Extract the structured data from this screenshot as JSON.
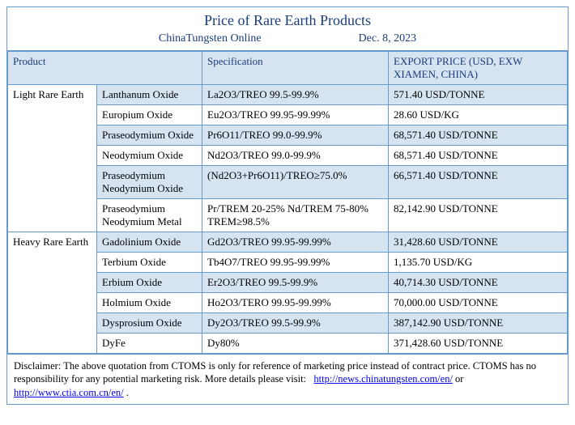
{
  "header": {
    "title": "Price of Rare Earth Products",
    "source": "ChinaTungsten Online",
    "date": "Dec. 8, 2023"
  },
  "columns": {
    "product": "Product",
    "spec": "Specification",
    "price": "EXPORT PRICE\n(USD, EXW XIAMEN, CHINA)"
  },
  "categories": [
    {
      "name": "Light Rare Earth",
      "rows": [
        {
          "product": "Lanthanum Oxide",
          "spec": "La2O3/TREO 99.5-99.9%",
          "price": "571.40 USD/TONNE"
        },
        {
          "product": "Europium Oxide",
          "spec": "Eu2O3/TREO 99.95-99.99%",
          "price": "28.60 USD/KG"
        },
        {
          "product": "Praseodymium Oxide",
          "spec": "Pr6O11/TREO 99.0-99.9%",
          "price": "68,571.40 USD/TONNE"
        },
        {
          "product": "Neodymium Oxide",
          "spec": "Nd2O3/TREO 99.0-99.9%",
          "price": "68,571.40 USD/TONNE"
        },
        {
          "product": "Praseodymium Neodymium Oxide",
          "spec": "(Nd2O3+Pr6O11)/TREO≥75.0%",
          "price": "66,571.40 USD/TONNE"
        },
        {
          "product": "Praseodymium Neodymium Metal",
          "spec": "Pr/TREM 20-25% Nd/TREM 75-80% TREM≥98.5%",
          "price": "82,142.90 USD/TONNE"
        }
      ]
    },
    {
      "name": "Heavy Rare Earth",
      "rows": [
        {
          "product": "Gadolinium Oxide",
          "spec": "Gd2O3/TREO 99.95-99.99%",
          "price": "31,428.60 USD/TONNE"
        },
        {
          "product": "Terbium Oxide",
          "spec": "Tb4O7/TREO 99.95-99.99%",
          "price": "1,135.70 USD/KG"
        },
        {
          "product": "Erbium Oxide",
          "spec": "Er2O3/TREO 99.5-99.9%",
          "price": "40,714.30 USD/TONNE"
        },
        {
          "product": "Holmium Oxide",
          "spec": "Ho2O3/TERO 99.95-99.99%",
          "price": "70,000.00 USD/TONNE"
        },
        {
          "product": "Dysprosium Oxide",
          "spec": "Dy2O3/TREO 99.5-99.9%",
          "price": "387,142.90 USD/TONNE"
        },
        {
          "product": "DyFe",
          "spec": "Dy80%",
          "price": "371,428.60 USD/TONNE"
        }
      ]
    }
  ],
  "disclaimer": {
    "text": "Disclaimer: The above quotation from CTOMS is only for reference of marketing price instead of contract price. CTOMS has no responsibility for any potential marketing risk. More details please visit:",
    "link1": "http://news.chinatungsten.com/en/",
    "or": " or ",
    "link2": "http://www.ctia.com.cn/en/",
    "end": "."
  },
  "styling": {
    "border_color": "#6699cc",
    "header_bg": "#d6e4f2",
    "alt_row_bg": "#d6e4f2",
    "plain_row_bg": "#ffffff",
    "title_color": "#1a3d7a",
    "font_family": "Times New Roman",
    "title_fontsize": 18,
    "cell_fontsize": 13,
    "disclaimer_fontsize": 12.5,
    "col_widths": {
      "category": 110,
      "product": 130,
      "spec": 230
    }
  }
}
